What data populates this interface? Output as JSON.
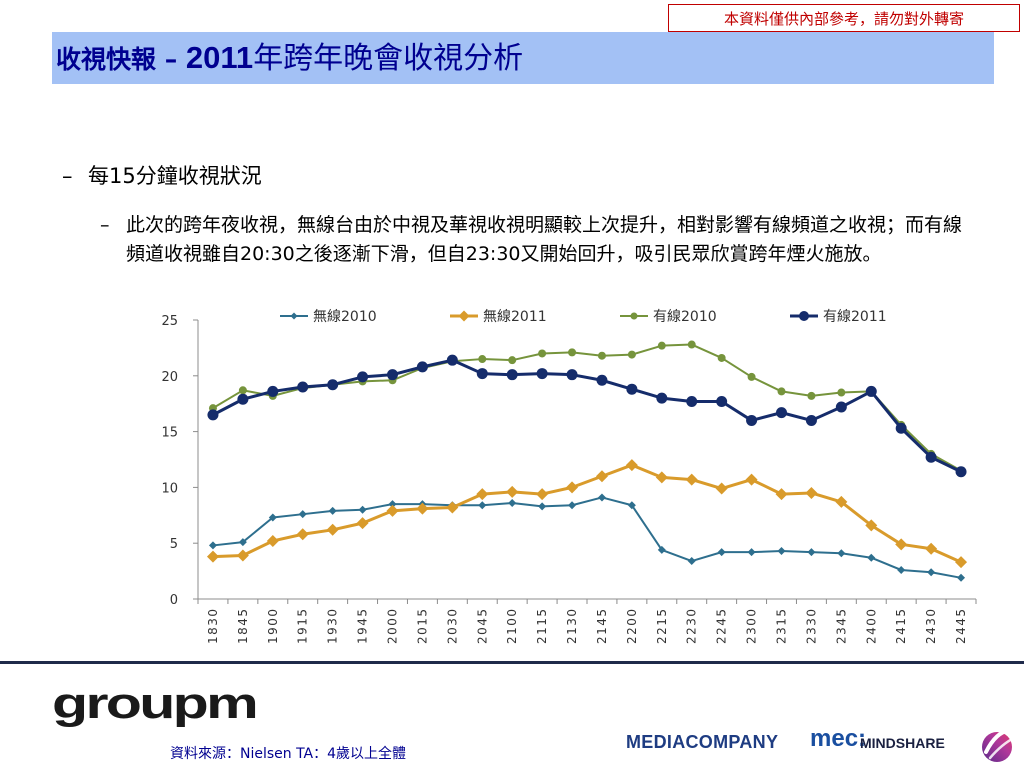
{
  "notice": "本資料僅供內部參考，請勿對外轉寄",
  "title": {
    "lead": "收視快報 – ",
    "year": "2011",
    "rest": "年跨年晚會收視分析"
  },
  "bullets": {
    "level1": {
      "dash": "–",
      "text": "每15分鐘收視狀況"
    },
    "level2": {
      "dash": "–",
      "text": "此次的跨年夜收視，無線台由於中視及華視收視明顯較上次提升，相對影響有線頻道之收視；而有線頻道收視雖自20:30之後逐漸下滑，但自23:30又開始回升，吸引民眾欣賞跨年煙火施放。"
    }
  },
  "chart_data": {
    "type": "line",
    "categories": [
      "1830",
      "1845",
      "1900",
      "1915",
      "1930",
      "1945",
      "2000",
      "2015",
      "2030",
      "2045",
      "2100",
      "2115",
      "2130",
      "2145",
      "2200",
      "2215",
      "2230",
      "2245",
      "2300",
      "2315",
      "2330",
      "2345",
      "2400",
      "2415",
      "2430",
      "2445"
    ],
    "ylim": [
      0,
      25
    ],
    "yticks": [
      "0",
      "5",
      "10",
      "15",
      "20",
      "25"
    ],
    "legend_position": "top",
    "grid": false,
    "series": [
      {
        "name": "無線2010",
        "color": "#2e6f8e",
        "marker": "diamond-small",
        "values": [
          4.8,
          5.1,
          7.3,
          7.6,
          7.9,
          8.0,
          8.5,
          8.5,
          8.4,
          8.4,
          8.6,
          8.3,
          8.4,
          9.1,
          8.4,
          4.4,
          3.4,
          4.2,
          4.2,
          4.3,
          4.2,
          4.1,
          3.7,
          2.6,
          2.4,
          1.9
        ]
      },
      {
        "name": "無線2011",
        "color": "#d99b2b",
        "marker": "diamond",
        "values": [
          3.8,
          3.9,
          5.2,
          5.8,
          6.2,
          6.8,
          7.9,
          8.1,
          8.2,
          9.4,
          9.6,
          9.4,
          10.0,
          11.0,
          12.0,
          10.9,
          10.7,
          9.9,
          10.7,
          9.4,
          9.5,
          8.7,
          6.6,
          4.9,
          4.5,
          3.3
        ]
      },
      {
        "name": "有線2010",
        "color": "#76943c",
        "marker": "circle-small",
        "values": [
          17.1,
          18.7,
          18.2,
          18.9,
          19.2,
          19.5,
          19.6,
          20.7,
          21.3,
          21.5,
          21.4,
          22.0,
          22.1,
          21.8,
          21.9,
          22.7,
          22.8,
          21.6,
          19.9,
          18.6,
          18.2,
          18.5,
          18.6,
          15.6,
          13.0,
          11.5
        ]
      },
      {
        "name": "有線2011",
        "color": "#152c6b",
        "marker": "circle",
        "values": [
          16.5,
          17.9,
          18.6,
          19.0,
          19.2,
          19.9,
          20.1,
          20.8,
          21.4,
          20.2,
          20.1,
          20.2,
          20.1,
          19.6,
          18.8,
          18.0,
          17.7,
          17.7,
          16.0,
          16.7,
          16.0,
          17.2,
          18.6,
          15.3,
          12.7,
          11.4
        ]
      }
    ]
  },
  "footer": {
    "brand": "groupm",
    "source_label": "資料來源：",
    "source_value": "Nielsen TA：4歲以上全體",
    "logo_mediacompany": "MEDIACOMPANY",
    "logo_mec": "mec:",
    "logo_mindshare": "MINDSHARE"
  }
}
